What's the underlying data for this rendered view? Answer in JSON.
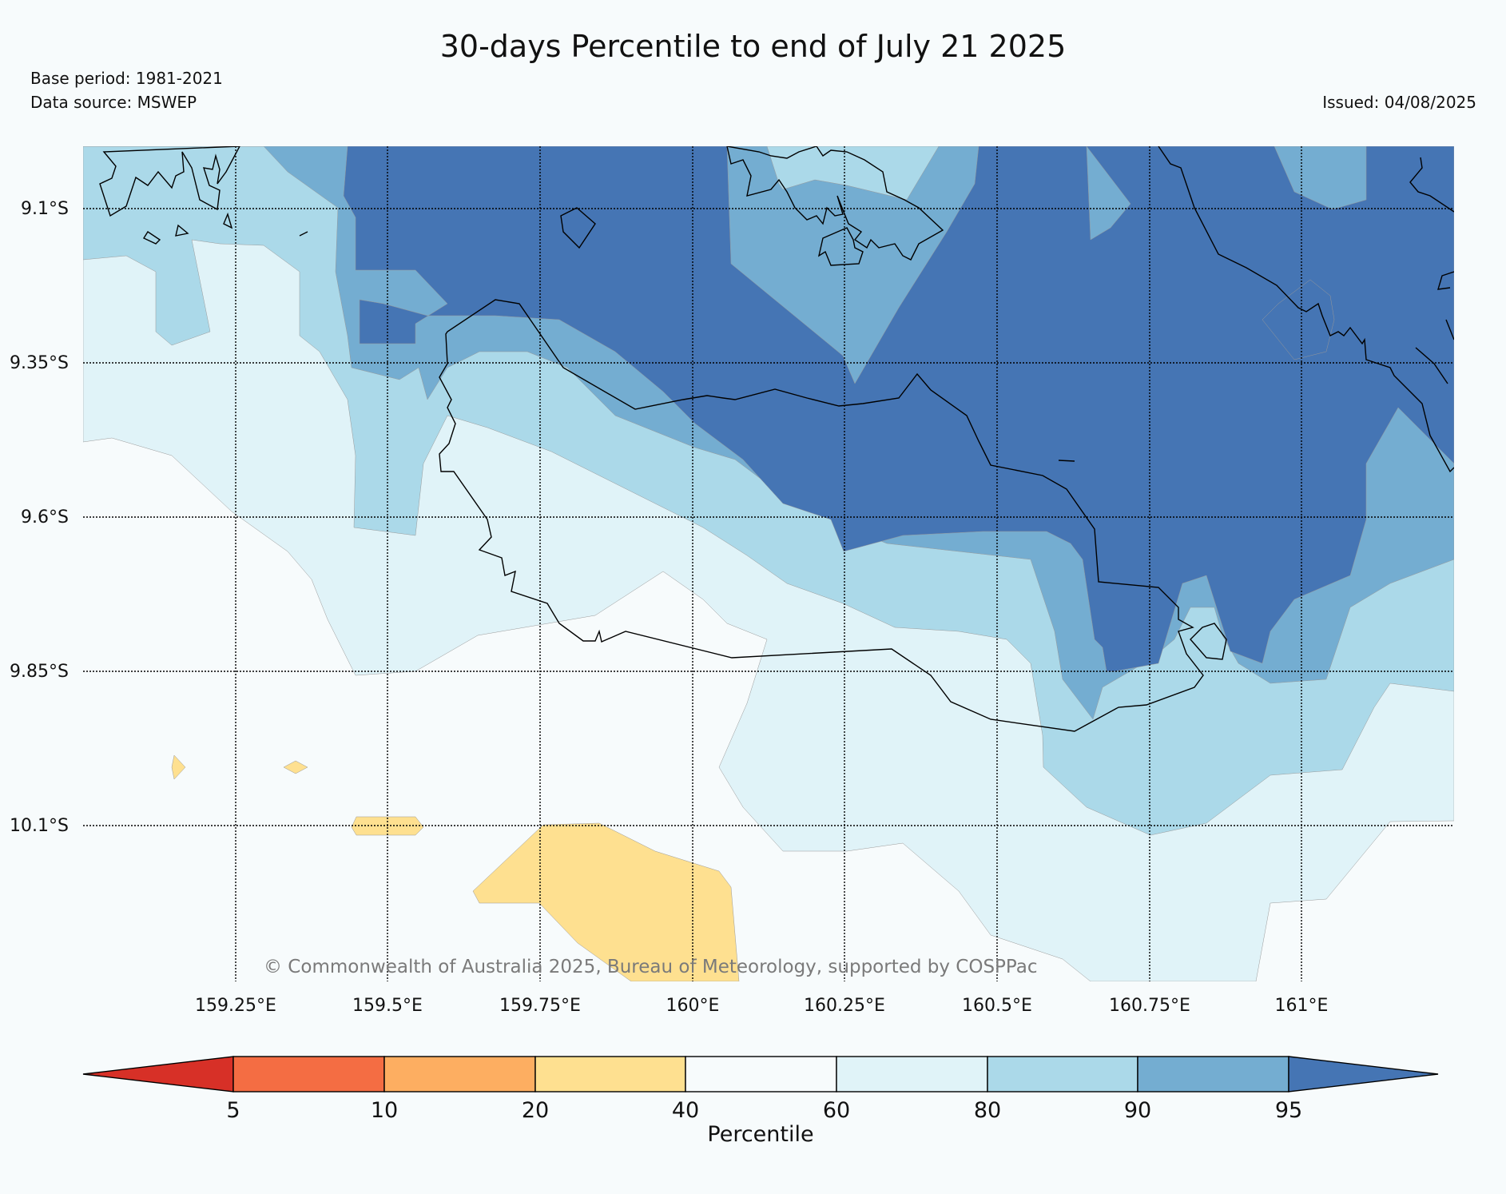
{
  "header": {
    "title": "30-days Percentile to end of July 21 2025",
    "base_period": "Base period: 1981-2021",
    "data_source": "Data source: MSWEP",
    "issued": "Issued: 04/08/2025"
  },
  "map": {
    "copyright": "© Commonwealth of Australia 2025, Bureau of Meteorology, supported by COSPPac",
    "lat_labels": [
      "9.1°S",
      "9.35°S",
      "9.6°S",
      "9.85°S",
      "10.1°S"
    ],
    "lon_labels": [
      "159.25°E",
      "159.5°E",
      "159.75°E",
      "160°E",
      "160.25°E",
      "160.5°E",
      "160.75°E",
      "161°E"
    ]
  },
  "colorbar": {
    "label": "Percentile",
    "ticks": [
      "5",
      "10",
      "20",
      "40",
      "60",
      "80",
      "90",
      "95"
    ],
    "colors": [
      "#d73027",
      "#f46d43",
      "#fdae61",
      "#fee090",
      "#f7fbfc",
      "#e0f3f8",
      "#abd9e9",
      "#74add1",
      "#4575b4"
    ]
  },
  "colors": {
    "p40_60": "#f7fbfc",
    "p60_80": "#e0f3f8",
    "p80_90": "#abd9e9",
    "p90_95": "#74add1",
    "p95_plus": "#4575b4",
    "p20_40": "#fee090"
  }
}
